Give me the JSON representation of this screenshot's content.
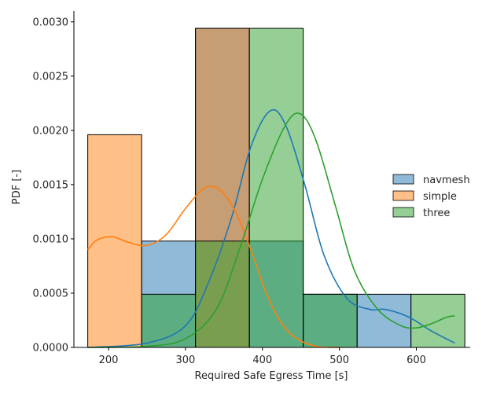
{
  "chart_data": {
    "type": "histogram-kde",
    "xlabel": "Required Safe Egress Time [s]",
    "ylabel": "PDF [-]",
    "xlim": [
      155,
      670
    ],
    "ylim": [
      0,
      0.0031
    ],
    "xticks": [
      200,
      300,
      400,
      500,
      600
    ],
    "yticks": [
      0.0,
      0.0005,
      0.001,
      0.0015,
      0.002,
      0.0025,
      0.003
    ],
    "ytick_labels": [
      "0.0000",
      "0.0005",
      "0.0010",
      "0.0015",
      "0.0020",
      "0.0025",
      "0.0030"
    ],
    "grid": false,
    "legend_position": "center-right",
    "bin_edges": [
      173,
      243,
      313,
      383,
      453,
      523,
      593,
      663
    ],
    "series": [
      {
        "name": "navmesh",
        "color": "#1f77b4",
        "densities": [
          0,
          0.00098,
          0.00294,
          0.00098,
          0.00049,
          0.00049,
          0
        ],
        "kde": [
          [
            173,
            0.0
          ],
          [
            250,
            4e-05
          ],
          [
            300,
            0.0002
          ],
          [
            330,
            0.0006
          ],
          [
            360,
            0.0012
          ],
          [
            385,
            0.00185
          ],
          [
            410,
            0.00218
          ],
          [
            430,
            0.00205
          ],
          [
            455,
            0.0015
          ],
          [
            480,
            0.00085
          ],
          [
            510,
            0.00045
          ],
          [
            540,
            0.00035
          ],
          [
            560,
            0.00035
          ],
          [
            590,
            0.00028
          ],
          [
            620,
            0.00015
          ],
          [
            650,
            4e-05
          ]
        ]
      },
      {
        "name": "simple",
        "color": "#ff7f0e",
        "densities": [
          0.00196,
          0,
          0.00294,
          0,
          0,
          0,
          0
        ],
        "kde": [
          [
            173,
            0.0009
          ],
          [
            185,
            0.00099
          ],
          [
            205,
            0.00102
          ],
          [
            225,
            0.00097
          ],
          [
            250,
            0.00094
          ],
          [
            275,
            0.00104
          ],
          [
            300,
            0.00128
          ],
          [
            325,
            0.00147
          ],
          [
            345,
            0.00145
          ],
          [
            365,
            0.00125
          ],
          [
            385,
            0.0009
          ],
          [
            405,
            0.0005
          ],
          [
            425,
            0.00022
          ],
          [
            445,
            8e-05
          ],
          [
            470,
            1e-05
          ],
          [
            500,
            0.0
          ]
        ]
      },
      {
        "name": "three",
        "color": "#2ca02c",
        "densities": [
          0,
          0.00049,
          0.00098,
          0.00294,
          0.00049,
          0,
          0.00049
        ],
        "kde": [
          [
            173,
            0.0
          ],
          [
            250,
            1e-05
          ],
          [
            300,
            8e-05
          ],
          [
            340,
            0.00035
          ],
          [
            370,
            0.0009
          ],
          [
            400,
            0.00155
          ],
          [
            430,
            0.00205
          ],
          [
            450,
            0.00215
          ],
          [
            470,
            0.0019
          ],
          [
            495,
            0.0013
          ],
          [
            520,
            0.0007
          ],
          [
            550,
            0.00035
          ],
          [
            580,
            0.0002
          ],
          [
            600,
            0.00018
          ],
          [
            620,
            0.00022
          ],
          [
            640,
            0.00028
          ],
          [
            650,
            0.00029
          ]
        ]
      }
    ]
  }
}
